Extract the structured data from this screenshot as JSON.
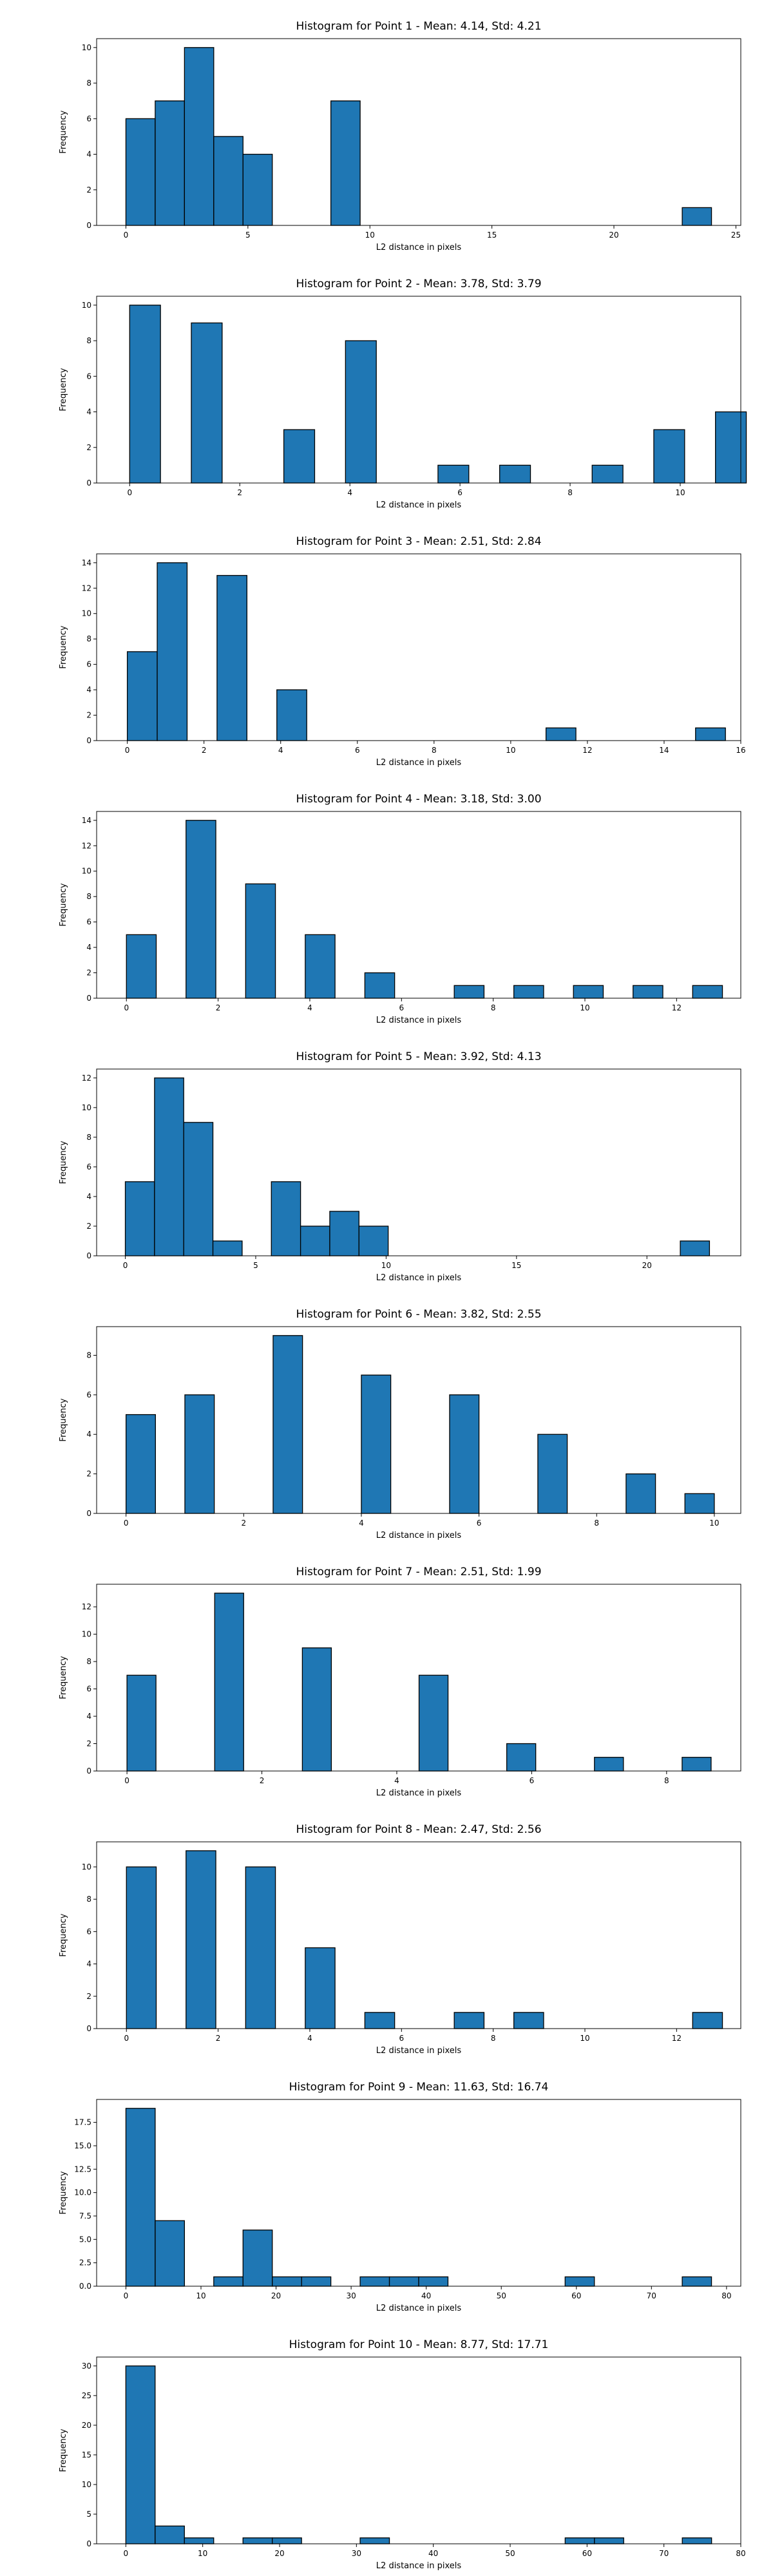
{
  "chart_data": [
    {
      "type": "bar",
      "title": "Histogram for Point 1 - Mean: 4.14, Std: 4.21",
      "xlabel": "L2 distance in pixels",
      "ylabel": "Frequency",
      "xlim": [
        -1.2,
        25.2
      ],
      "ylim": [
        0,
        10.5
      ],
      "xticks": [
        0,
        5,
        10,
        15,
        20,
        25
      ],
      "yticks": [
        0,
        2,
        4,
        6,
        8,
        10
      ],
      "bins": [
        {
          "x0": 0,
          "x1": 1.2,
          "count": 6
        },
        {
          "x0": 1.2,
          "x1": 2.4,
          "count": 7
        },
        {
          "x0": 2.4,
          "x1": 3.6,
          "count": 10
        },
        {
          "x0": 3.6,
          "x1": 4.8,
          "count": 5
        },
        {
          "x0": 4.8,
          "x1": 6.0,
          "count": 4
        },
        {
          "x0": 8.4,
          "x1": 9.6,
          "count": 7
        },
        {
          "x0": 22.8,
          "x1": 24.0,
          "count": 1
        }
      ],
      "bar_color": "#1f77b4",
      "edge_color": "#000000",
      "grid": false,
      "legend": "none"
    },
    {
      "type": "bar",
      "title": "Histogram for Point 2 - Mean: 3.78, Std: 3.79",
      "xlabel": "L2 distance in pixels",
      "ylabel": "Frequency",
      "xlim": [
        -0.6,
        11.1
      ],
      "ylim": [
        0,
        10.5
      ],
      "xticks": [
        0,
        2,
        4,
        6,
        8,
        10
      ],
      "yticks": [
        0,
        2,
        4,
        6,
        8,
        10
      ],
      "bins": [
        {
          "x0": 0,
          "x1": 0.56,
          "count": 10
        },
        {
          "x0": 1.12,
          "x1": 1.68,
          "count": 9
        },
        {
          "x0": 2.8,
          "x1": 3.36,
          "count": 3
        },
        {
          "x0": 3.92,
          "x1": 4.48,
          "count": 8
        },
        {
          "x0": 5.6,
          "x1": 6.16,
          "count": 1
        },
        {
          "x0": 6.72,
          "x1": 7.28,
          "count": 1
        },
        {
          "x0": 8.4,
          "x1": 8.96,
          "count": 1
        },
        {
          "x0": 9.52,
          "x1": 10.08,
          "count": 3
        },
        {
          "x0": 10.64,
          "x1": 11.2,
          "count": 4
        }
      ],
      "bar_color": "#1f77b4",
      "edge_color": "#000000",
      "grid": false,
      "legend": "none"
    },
    {
      "type": "bar",
      "title": "Histogram for Point 3 - Mean: 2.51, Std: 2.84",
      "xlabel": "L2 distance in pixels",
      "ylabel": "Frequency",
      "xlim": [
        -0.8,
        16.0
      ],
      "ylim": [
        0,
        14.7
      ],
      "xticks": [
        0,
        2,
        4,
        6,
        8,
        10,
        12,
        14,
        16
      ],
      "yticks": [
        0,
        2,
        4,
        6,
        8,
        10,
        12,
        14
      ],
      "bins": [
        {
          "x0": 0,
          "x1": 0.78,
          "count": 7
        },
        {
          "x0": 0.78,
          "x1": 1.56,
          "count": 14
        },
        {
          "x0": 2.34,
          "x1": 3.12,
          "count": 13
        },
        {
          "x0": 3.9,
          "x1": 4.68,
          "count": 4
        },
        {
          "x0": 10.92,
          "x1": 11.7,
          "count": 1
        },
        {
          "x0": 14.82,
          "x1": 15.6,
          "count": 1
        }
      ],
      "bar_color": "#1f77b4",
      "edge_color": "#000000",
      "grid": false,
      "legend": "none"
    },
    {
      "type": "bar",
      "title": "Histogram for Point 4 - Mean: 3.18, Std: 3.00",
      "xlabel": "L2 distance in pixels",
      "ylabel": "Frequency",
      "xlim": [
        -0.65,
        13.4
      ],
      "ylim": [
        0,
        14.7
      ],
      "xticks": [
        0,
        2,
        4,
        6,
        8,
        10,
        12
      ],
      "yticks": [
        0,
        2,
        4,
        6,
        8,
        10,
        12,
        14
      ],
      "bins": [
        {
          "x0": 0,
          "x1": 0.65,
          "count": 5
        },
        {
          "x0": 1.3,
          "x1": 1.95,
          "count": 14
        },
        {
          "x0": 2.6,
          "x1": 3.25,
          "count": 9
        },
        {
          "x0": 3.9,
          "x1": 4.55,
          "count": 5
        },
        {
          "x0": 5.2,
          "x1": 5.85,
          "count": 2
        },
        {
          "x0": 7.15,
          "x1": 7.8,
          "count": 1
        },
        {
          "x0": 8.45,
          "x1": 9.1,
          "count": 1
        },
        {
          "x0": 9.75,
          "x1": 10.4,
          "count": 1
        },
        {
          "x0": 11.05,
          "x1": 11.7,
          "count": 1
        },
        {
          "x0": 12.35,
          "x1": 13.0,
          "count": 1
        }
      ],
      "bar_color": "#1f77b4",
      "edge_color": "#000000",
      "grid": false,
      "legend": "none"
    },
    {
      "type": "bar",
      "title": "Histogram for Point 5 - Mean: 3.92, Std: 4.13",
      "xlabel": "L2 distance in pixels",
      "ylabel": "Frequency",
      "xlim": [
        -1.1,
        23.6
      ],
      "ylim": [
        0,
        12.6
      ],
      "xticks": [
        0,
        5,
        10,
        15,
        20
      ],
      "yticks": [
        0,
        2,
        4,
        6,
        8,
        10,
        12
      ],
      "bins": [
        {
          "x0": 0,
          "x1": 1.12,
          "count": 5
        },
        {
          "x0": 1.12,
          "x1": 2.24,
          "count": 12
        },
        {
          "x0": 2.24,
          "x1": 3.36,
          "count": 9
        },
        {
          "x0": 3.36,
          "x1": 4.48,
          "count": 1
        },
        {
          "x0": 5.6,
          "x1": 6.72,
          "count": 5
        },
        {
          "x0": 6.72,
          "x1": 7.84,
          "count": 2
        },
        {
          "x0": 7.84,
          "x1": 8.96,
          "count": 3
        },
        {
          "x0": 8.96,
          "x1": 10.08,
          "count": 2
        },
        {
          "x0": 21.28,
          "x1": 22.4,
          "count": 1
        }
      ],
      "bar_color": "#1f77b4",
      "edge_color": "#000000",
      "grid": false,
      "legend": "none"
    },
    {
      "type": "bar",
      "title": "Histogram for Point 6 - Mean: 3.82, Std: 2.55",
      "xlabel": "L2 distance in pixels",
      "ylabel": "Frequency",
      "xlim": [
        -0.5,
        10.45
      ],
      "ylim": [
        0,
        9.45
      ],
      "xticks": [
        0,
        2,
        4,
        6,
        8,
        10
      ],
      "yticks": [
        0,
        2,
        4,
        6,
        8
      ],
      "bins": [
        {
          "x0": 0,
          "x1": 0.5,
          "count": 5
        },
        {
          "x0": 1.0,
          "x1": 1.5,
          "count": 6
        },
        {
          "x0": 2.5,
          "x1": 3.0,
          "count": 9
        },
        {
          "x0": 4.0,
          "x1": 4.5,
          "count": 7
        },
        {
          "x0": 5.5,
          "x1": 6.0,
          "count": 6
        },
        {
          "x0": 7.0,
          "x1": 7.5,
          "count": 4
        },
        {
          "x0": 8.5,
          "x1": 9.0,
          "count": 2
        },
        {
          "x0": 9.5,
          "x1": 10.0,
          "count": 1
        }
      ],
      "bar_color": "#1f77b4",
      "edge_color": "#000000",
      "grid": false,
      "legend": "none"
    },
    {
      "type": "bar",
      "title": "Histogram for Point 7 - Mean: 2.51, Std: 1.99",
      "xlabel": "L2 distance in pixels",
      "ylabel": "Frequency",
      "xlim": [
        -0.45,
        9.1
      ],
      "ylim": [
        0,
        13.65
      ],
      "xticks": [
        0,
        2,
        4,
        6,
        8
      ],
      "yticks": [
        0,
        2,
        4,
        6,
        8,
        10,
        12
      ],
      "bins": [
        {
          "x0": 0,
          "x1": 0.43,
          "count": 7
        },
        {
          "x0": 1.3,
          "x1": 1.73,
          "count": 13
        },
        {
          "x0": 2.6,
          "x1": 3.03,
          "count": 9
        },
        {
          "x0": 4.33,
          "x1": 4.76,
          "count": 7
        },
        {
          "x0": 5.63,
          "x1": 6.06,
          "count": 2
        },
        {
          "x0": 6.93,
          "x1": 7.36,
          "count": 1
        },
        {
          "x0": 8.23,
          "x1": 8.66,
          "count": 1
        }
      ],
      "bar_color": "#1f77b4",
      "edge_color": "#000000",
      "grid": false,
      "legend": "none"
    },
    {
      "type": "bar",
      "title": "Histogram for Point 8 - Mean: 2.47, Std: 2.56",
      "xlabel": "L2 distance in pixels",
      "ylabel": "Frequency",
      "xlim": [
        -0.65,
        13.4
      ],
      "ylim": [
        0,
        11.55
      ],
      "xticks": [
        0,
        2,
        4,
        6,
        8,
        10,
        12
      ],
      "yticks": [
        0,
        2,
        4,
        6,
        8,
        10
      ],
      "bins": [
        {
          "x0": 0,
          "x1": 0.65,
          "count": 10
        },
        {
          "x0": 1.3,
          "x1": 1.95,
          "count": 11
        },
        {
          "x0": 2.6,
          "x1": 3.25,
          "count": 10
        },
        {
          "x0": 3.9,
          "x1": 4.55,
          "count": 5
        },
        {
          "x0": 5.2,
          "x1": 5.85,
          "count": 1
        },
        {
          "x0": 7.15,
          "x1": 7.8,
          "count": 1
        },
        {
          "x0": 8.45,
          "x1": 9.1,
          "count": 1
        },
        {
          "x0": 12.35,
          "x1": 13.0,
          "count": 1
        }
      ],
      "bar_color": "#1f77b4",
      "edge_color": "#000000",
      "grid": false,
      "legend": "none"
    },
    {
      "type": "bar",
      "title": "Histogram for Point 9 - Mean: 11.63, Std: 16.74",
      "xlabel": "L2 distance in pixels",
      "ylabel": "Frequency",
      "xlim": [
        -3.9,
        81.9
      ],
      "ylim": [
        0,
        19.95
      ],
      "xticks": [
        0,
        10,
        20,
        30,
        40,
        50,
        60,
        70,
        80
      ],
      "yticks": [
        0.0,
        2.5,
        5.0,
        7.5,
        10.0,
        12.5,
        15.0,
        17.5
      ],
      "ytick_labels": [
        "0.0",
        "2.5",
        "5.0",
        "7.5",
        "10.0",
        "12.5",
        "15.0",
        "17.5"
      ],
      "bins": [
        {
          "x0": 0,
          "x1": 3.9,
          "count": 19
        },
        {
          "x0": 3.9,
          "x1": 7.8,
          "count": 7
        },
        {
          "x0": 11.7,
          "x1": 15.6,
          "count": 1
        },
        {
          "x0": 15.6,
          "x1": 19.5,
          "count": 6
        },
        {
          "x0": 19.5,
          "x1": 23.4,
          "count": 1
        },
        {
          "x0": 23.4,
          "x1": 27.3,
          "count": 1
        },
        {
          "x0": 31.2,
          "x1": 35.1,
          "count": 1
        },
        {
          "x0": 35.1,
          "x1": 39.0,
          "count": 1
        },
        {
          "x0": 39.0,
          "x1": 42.9,
          "count": 1
        },
        {
          "x0": 58.5,
          "x1": 62.4,
          "count": 1
        },
        {
          "x0": 74.1,
          "x1": 78.0,
          "count": 1
        }
      ],
      "bar_color": "#1f77b4",
      "edge_color": "#000000",
      "grid": false,
      "legend": "none"
    },
    {
      "type": "bar",
      "title": "Histogram for Point 10 - Mean: 8.77, Std: 17.71",
      "xlabel": "L2 distance in pixels",
      "ylabel": "Frequency",
      "xlim": [
        -3.8,
        80.0
      ],
      "ylim": [
        0,
        31.5
      ],
      "xticks": [
        0,
        10,
        20,
        30,
        40,
        50,
        60,
        70,
        80
      ],
      "yticks": [
        0,
        5,
        10,
        15,
        20,
        25,
        30
      ],
      "bins": [
        {
          "x0": 0,
          "x1": 3.81,
          "count": 30
        },
        {
          "x0": 3.81,
          "x1": 7.62,
          "count": 3
        },
        {
          "x0": 7.62,
          "x1": 11.43,
          "count": 1
        },
        {
          "x0": 15.24,
          "x1": 19.05,
          "count": 1
        },
        {
          "x0": 19.05,
          "x1": 22.86,
          "count": 1
        },
        {
          "x0": 30.48,
          "x1": 34.29,
          "count": 1
        },
        {
          "x0": 57.15,
          "x1": 60.96,
          "count": 1
        },
        {
          "x0": 60.96,
          "x1": 64.77,
          "count": 1
        },
        {
          "x0": 72.39,
          "x1": 76.2,
          "count": 1
        }
      ],
      "bar_color": "#1f77b4",
      "edge_color": "#000000",
      "grid": false,
      "legend": "none"
    }
  ]
}
